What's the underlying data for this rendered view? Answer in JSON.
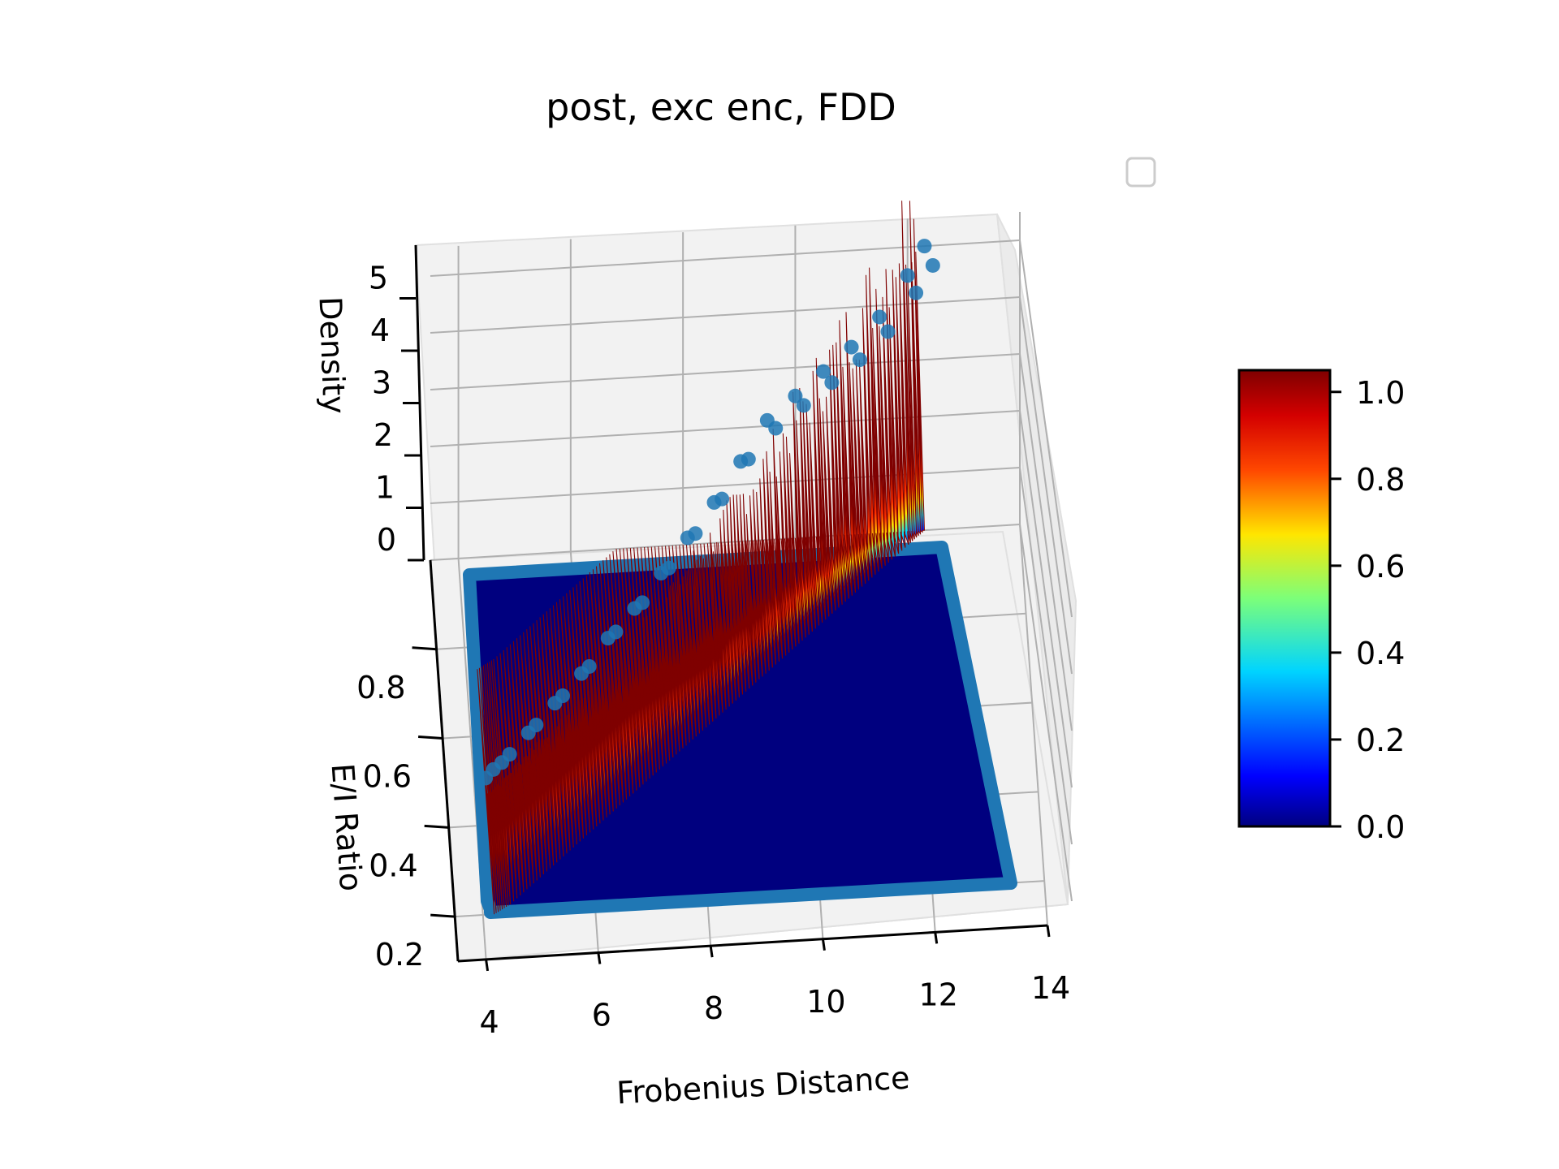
{
  "chart_data": {
    "type": "surface3d",
    "title": "post, exc enc, FDD",
    "xlabel": "Frobenius Distance",
    "ylabel": "E/I Ratio",
    "zlabel": "Density",
    "xlim": [
      3.5,
      14.0
    ],
    "ylim": [
      0.1,
      1.0
    ],
    "zlim": [
      0,
      5.5
    ],
    "x_ticks": [
      "4",
      "6",
      "8",
      "10",
      "12",
      "14"
    ],
    "y_ticks": [
      "0.2",
      "0.4",
      "0.6",
      "0.8"
    ],
    "z_ticks": [
      "0",
      "1",
      "2",
      "3",
      "4",
      "5"
    ],
    "grid": true,
    "legend": {
      "placement": "upper-right",
      "entries": []
    },
    "colormap": "jet",
    "colorbar": {
      "ticks": [
        "0.0",
        "0.2",
        "0.4",
        "0.6",
        "0.8",
        "1.0"
      ],
      "min": 0.0,
      "max": 1.05
    },
    "colors": {
      "scatter": "#1f77b4",
      "surface_low": "#00007f",
      "surface_high": "#7f0000",
      "pane": "#f2f2f2",
      "grid": "#b0b0b0"
    },
    "ridge_x": [
      4.2,
      4.5,
      5.0,
      5.5,
      6.0,
      6.5,
      7.0,
      7.5,
      8.0,
      8.5,
      9.0,
      9.5,
      10.0,
      10.5,
      11.0,
      11.5,
      12.0,
      12.3
    ],
    "ridge_y": [
      0.2,
      0.22,
      0.27,
      0.32,
      0.37,
      0.42,
      0.47,
      0.52,
      0.57,
      0.62,
      0.67,
      0.72,
      0.77,
      0.82,
      0.87,
      0.92,
      0.97,
      1.0
    ],
    "ridge_density": [
      0.2,
      0.3,
      0.4,
      0.5,
      0.6,
      0.8,
      0.9,
      1.1,
      1.3,
      1.5,
      1.8,
      2.1,
      2.5,
      2.9,
      3.3,
      3.8,
      4.5,
      5.0
    ]
  }
}
